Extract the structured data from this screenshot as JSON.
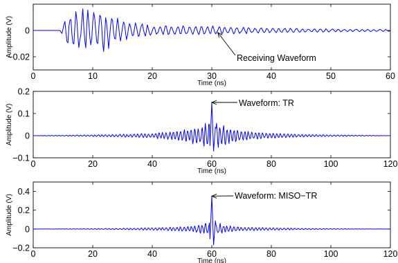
{
  "figure": {
    "background": "#ffffff",
    "line_color": "#0000ff",
    "axis_color": "#000000"
  },
  "chart_data": [
    {
      "type": "line",
      "xlabel": "Time (ns)",
      "ylabel": "Amplitude (V)",
      "xlim": [
        0,
        60
      ],
      "ylim": [
        -0.03,
        0.02
      ],
      "xticks": [
        0,
        10,
        20,
        30,
        40,
        50,
        60
      ],
      "xtick_labels": [
        "0",
        "10",
        "20",
        "30",
        "40",
        "50",
        "60"
      ],
      "yticks": [
        -0.02,
        0
      ],
      "ytick_labels": [
        "−0.02",
        "0"
      ],
      "annotation": {
        "text": "Receiving Waveform",
        "x": 31,
        "y": -0.0015
      },
      "series": [
        {
          "color": "#0000ff",
          "envelope": [
            [
              0,
              0
            ],
            [
              4.5,
              0
            ],
            [
              5.5,
              0.012
            ],
            [
              6.5,
              0.015
            ],
            [
              8,
              0.018
            ],
            [
              10,
              0.017
            ],
            [
              12,
              0.018
            ],
            [
              13,
              0.012
            ],
            [
              15,
              0.008
            ],
            [
              20,
              0.004
            ],
            [
              30,
              0.0035
            ],
            [
              40,
              0.002
            ],
            [
              50,
              0.0012
            ],
            [
              60,
              0.0008
            ]
          ],
          "period_ns": 1.0
        }
      ]
    },
    {
      "type": "line",
      "xlabel": "Time (ns)",
      "ylabel": "Amplitude (V)",
      "xlim": [
        0,
        120
      ],
      "ylim": [
        -0.1,
        0.2
      ],
      "xticks": [
        0,
        20,
        40,
        60,
        80,
        100,
        120
      ],
      "xtick_labels": [
        "0",
        "20",
        "40",
        "60",
        "80",
        "100",
        "120"
      ],
      "yticks": [
        -0.1,
        0,
        0.1,
        0.2
      ],
      "ytick_labels": [
        "−0.1",
        "0",
        "0.1",
        "0.2"
      ],
      "annotation": {
        "text": "Waveform: TR",
        "x": 60,
        "y": 0.15
      },
      "series": [
        {
          "color": "#0000ff",
          "peak": {
            "x": 60,
            "y": 0.15
          },
          "trough": {
            "x": 60.6,
            "y": -0.07
          },
          "envelope": [
            [
              0,
              0
            ],
            [
              8,
              0.002
            ],
            [
              20,
              0.004
            ],
            [
              30,
              0.007
            ],
            [
              40,
              0.012
            ],
            [
              50,
              0.025
            ],
            [
              55,
              0.045
            ],
            [
              58,
              0.06
            ],
            [
              62,
              0.06
            ],
            [
              65,
              0.045
            ],
            [
              70,
              0.025
            ],
            [
              80,
              0.012
            ],
            [
              90,
              0.007
            ],
            [
              100,
              0.004
            ],
            [
              112,
              0.002
            ],
            [
              120,
              0
            ]
          ],
          "period_ns": 1.2
        }
      ]
    },
    {
      "type": "line",
      "xlabel": "Time (ns)",
      "ylabel": "Amplitude (V)",
      "xlim": [
        0,
        120
      ],
      "ylim": [
        -0.2,
        0.5
      ],
      "xticks": [
        0,
        20,
        40,
        60,
        80,
        100,
        120
      ],
      "xtick_labels": [
        "0",
        "20",
        "40",
        "60",
        "80",
        "100",
        "120"
      ],
      "yticks": [
        -0.2,
        0,
        0.2,
        0.4
      ],
      "ytick_labels": [
        "−0.2",
        "0",
        "0.2",
        "0.4"
      ],
      "annotation": {
        "text": "Waveform: MISO−TR",
        "x": 60,
        "y": 0.35
      },
      "series": [
        {
          "color": "#0000ff",
          "peak": {
            "x": 60,
            "y": 0.35
          },
          "trough": {
            "x": 60.6,
            "y": -0.17
          },
          "envelope": [
            [
              0,
              0
            ],
            [
              20,
              0.004
            ],
            [
              30,
              0.008
            ],
            [
              40,
              0.015
            ],
            [
              50,
              0.025
            ],
            [
              55,
              0.04
            ],
            [
              58,
              0.07
            ],
            [
              62,
              0.07
            ],
            [
              65,
              0.04
            ],
            [
              70,
              0.025
            ],
            [
              80,
              0.015
            ],
            [
              90,
              0.008
            ],
            [
              100,
              0.004
            ],
            [
              120,
              0
            ]
          ],
          "period_ns": 1.2
        }
      ]
    }
  ]
}
